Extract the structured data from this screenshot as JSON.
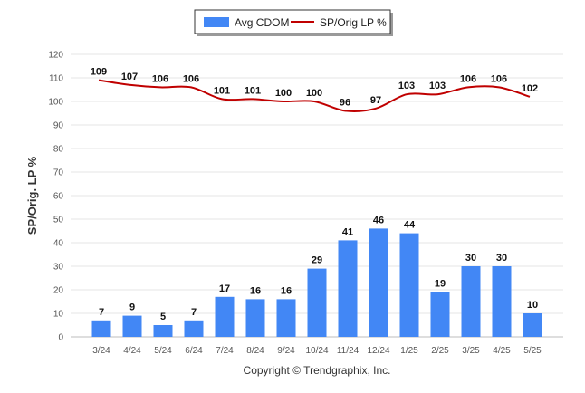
{
  "chart_data": {
    "type": "bar",
    "categories": [
      "3/24",
      "4/24",
      "5/24",
      "6/24",
      "7/24",
      "8/24",
      "9/24",
      "10/24",
      "11/24",
      "12/24",
      "1/25",
      "2/25",
      "3/25",
      "4/25",
      "5/25"
    ],
    "series": [
      {
        "name": "Avg CDOM",
        "type": "bar",
        "color": "#4287f5",
        "values": [
          7,
          9,
          5,
          7,
          17,
          16,
          16,
          29,
          41,
          46,
          44,
          19,
          30,
          30,
          10
        ]
      },
      {
        "name": "SP/Orig LP %",
        "type": "line",
        "color": "#c00000",
        "values": [
          109,
          107,
          106,
          106,
          101,
          101,
          100,
          100,
          96,
          97,
          103,
          103,
          106,
          106,
          102
        ]
      }
    ],
    "ylabel": "SP/Orig. LP %",
    "xlabel": "",
    "ylim": [
      0,
      120
    ],
    "yticks": [
      0,
      10,
      20,
      30,
      40,
      50,
      60,
      70,
      80,
      90,
      100,
      110,
      120
    ],
    "grid": true,
    "legend_position": "top-center"
  },
  "footer": {
    "copyright": "Copyright © Trendgraphix, Inc."
  }
}
